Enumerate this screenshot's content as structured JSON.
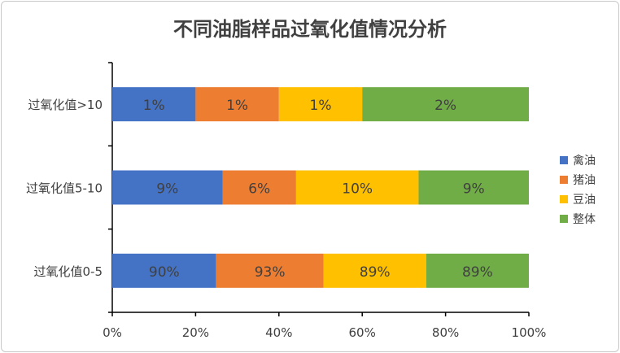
{
  "chart_data": {
    "type": "bar",
    "orientation": "horizontal",
    "stacking": "percent",
    "title": "不同油脂样品过氧化值情况分析",
    "categories": [
      "过氧化值0-5",
      "过氧化值5-10",
      "过氧化值>10"
    ],
    "series": [
      {
        "name": "禽油",
        "color": "#4472C4",
        "values": [
          90,
          9,
          1
        ],
        "labels": [
          "90%",
          "9%",
          "1%"
        ]
      },
      {
        "name": "猪油",
        "color": "#ED7D31",
        "values": [
          93,
          6,
          1
        ],
        "labels": [
          "93%",
          "6%",
          "1%"
        ]
      },
      {
        "name": "豆油",
        "color": "#FFC000",
        "values": [
          89,
          10,
          1
        ],
        "labels": [
          "89%",
          "10%",
          "1%"
        ]
      },
      {
        "name": "整体",
        "color": "#70AD47",
        "values": [
          89,
          9,
          2
        ],
        "labels": [
          "89%",
          "9%",
          "2%"
        ]
      }
    ],
    "xticks": [
      "0%",
      "20%",
      "40%",
      "60%",
      "80%",
      "100%"
    ],
    "xlim": [
      0,
      100
    ],
    "grid": false,
    "legend": "right"
  }
}
